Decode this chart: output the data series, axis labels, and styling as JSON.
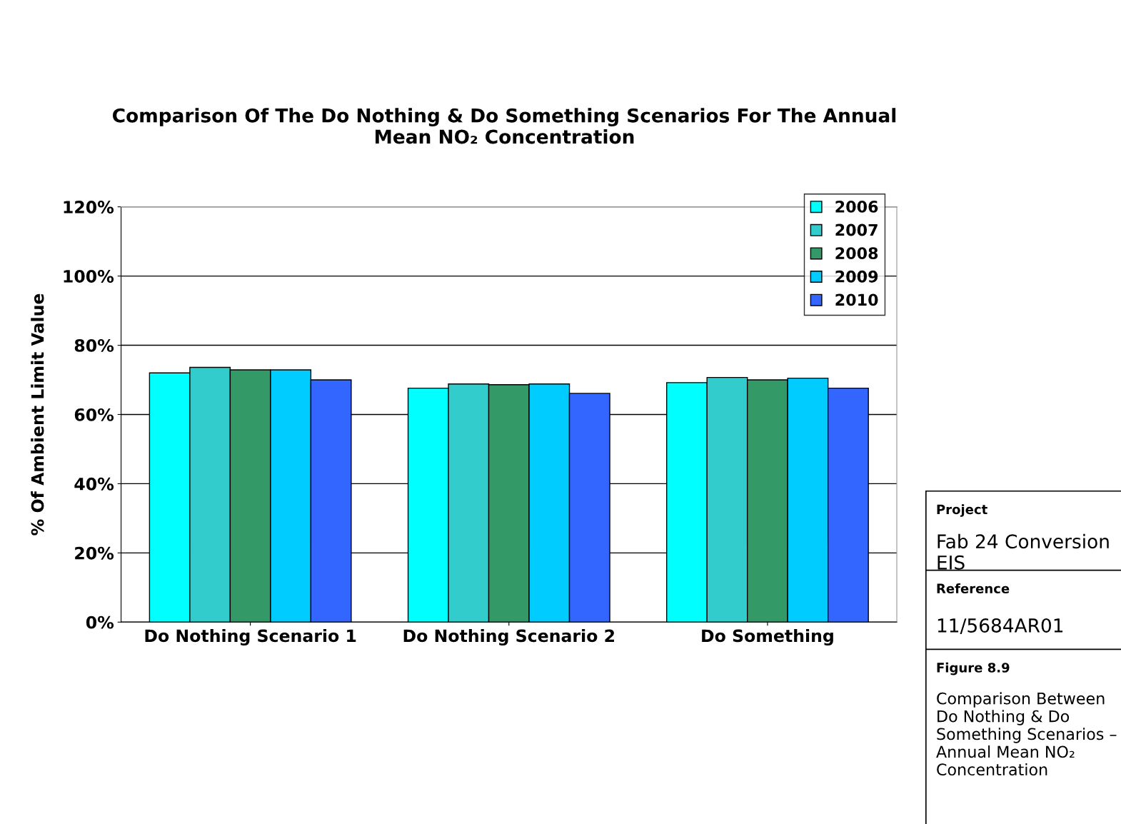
{
  "chart_data": {
    "type": "bar",
    "title": "Comparison Of The Do Nothing & Do Something Scenarios For The Annual\nMean NO₂ Concentration",
    "ylabel": "% Of Ambient Limit Value",
    "categories": [
      "Do Nothing Scenario 1",
      "Do Nothing Scenario 2",
      "Do Something"
    ],
    "series": [
      {
        "name": "2006",
        "color": "#00ffff",
        "values": [
          72,
          67.6,
          69.2
        ]
      },
      {
        "name": "2007",
        "color": "#33cccc",
        "values": [
          73.6,
          68.8,
          70.7
        ]
      },
      {
        "name": "2008",
        "color": "#339966",
        "values": [
          72.9,
          68.6,
          70
        ]
      },
      {
        "name": "2009",
        "color": "#00ccff",
        "values": [
          72.9,
          68.8,
          70.5
        ]
      },
      {
        "name": "2010",
        "color": "#3366ff",
        "values": [
          70,
          66.1,
          67.6
        ]
      }
    ],
    "ylim": [
      0,
      120
    ],
    "yticks": [
      {
        "value": 0,
        "label": "0%"
      },
      {
        "value": 20,
        "label": "20%"
      },
      {
        "value": 40,
        "label": "40%"
      },
      {
        "value": 60,
        "label": "60%"
      },
      {
        "value": 80,
        "label": "80%"
      },
      {
        "value": 100,
        "label": "100%"
      },
      {
        "value": 120,
        "label": "120%"
      }
    ],
    "grid": "y",
    "legend": "top right",
    "annotations": [
      "Project",
      "Fab 24 Conversion EIS",
      "Reference",
      "11/5684AR01",
      "Figure 8.9",
      "Comparison Between Do Nothing & Do Something Scenarios – Annual Mean NO₂ Concentration"
    ]
  }
}
